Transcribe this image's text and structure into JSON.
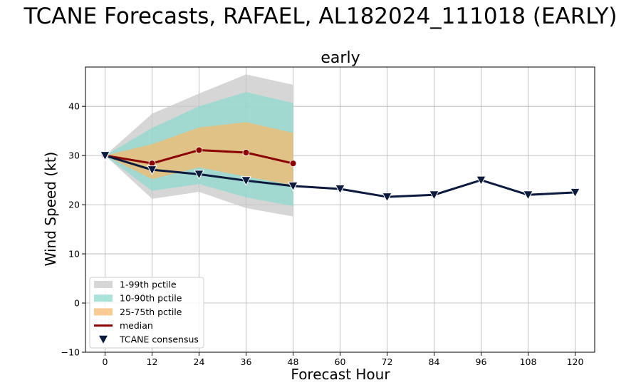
{
  "figure_title": "TCANE Forecasts, RAFAEL, AL182024_111018 (EARLY)",
  "chart_data": {
    "type": "line",
    "title": "early",
    "xlabel": "Forecast Hour",
    "ylabel": "Wind Speed (kt)",
    "xlim": [
      -5,
      125
    ],
    "ylim": [
      -10,
      48
    ],
    "x_ticks": [
      0,
      12,
      24,
      36,
      48,
      60,
      72,
      84,
      96,
      108,
      120
    ],
    "y_ticks": [
      -10,
      0,
      10,
      20,
      30,
      40
    ],
    "grid": true,
    "legend_position": "lower-left",
    "colors": {
      "band_1_99": "#c8c8c8",
      "band_10_90": "#8fd9cf",
      "band_25_75": "#f5b96e",
      "median": "#8b0000",
      "consensus": "#0b1a3d"
    },
    "legend": [
      {
        "label": "1-99th pctile",
        "key": "band_1_99",
        "kind": "patch"
      },
      {
        "label": "10-90th pctile",
        "key": "band_10_90",
        "kind": "patch"
      },
      {
        "label": "25-75th pctile",
        "key": "band_25_75",
        "kind": "patch"
      },
      {
        "label": "median",
        "key": "median",
        "kind": "line"
      },
      {
        "label": "TCANE consensus",
        "key": "consensus",
        "kind": "triangle"
      }
    ],
    "bands": [
      {
        "name": "1-99th pctile",
        "key": "band_1_99",
        "x": [
          0,
          12,
          24,
          36,
          48
        ],
        "lower": [
          30,
          21.2,
          22.6,
          19.3,
          17.6
        ],
        "upper": [
          30,
          38.5,
          42.6,
          46.5,
          44.4
        ]
      },
      {
        "name": "10-90th pctile",
        "key": "band_10_90",
        "x": [
          0,
          12,
          24,
          36,
          48
        ],
        "lower": [
          30,
          22.8,
          24.2,
          21.5,
          19.7
        ],
        "upper": [
          30,
          35.6,
          40.0,
          42.9,
          40.7
        ]
      },
      {
        "name": "25-75th pctile",
        "key": "band_25_75",
        "x": [
          0,
          12,
          24,
          36,
          48
        ],
        "lower": [
          30,
          25.2,
          27.6,
          25.7,
          24.0
        ],
        "upper": [
          30,
          32.3,
          35.7,
          36.8,
          34.6
        ]
      }
    ],
    "series": [
      {
        "name": "median",
        "key": "median",
        "x": [
          0,
          12,
          24,
          36,
          48
        ],
        "values": [
          30.0,
          28.4,
          31.1,
          30.6,
          28.4
        ]
      },
      {
        "name": "TCANE consensus",
        "key": "consensus",
        "x": [
          0,
          12,
          24,
          36,
          48,
          60,
          72,
          84,
          96,
          108,
          120
        ],
        "values": [
          30.0,
          27.1,
          26.2,
          24.9,
          23.8,
          23.2,
          21.6,
          22.0,
          25.0,
          22.0,
          22.5
        ]
      }
    ]
  }
}
